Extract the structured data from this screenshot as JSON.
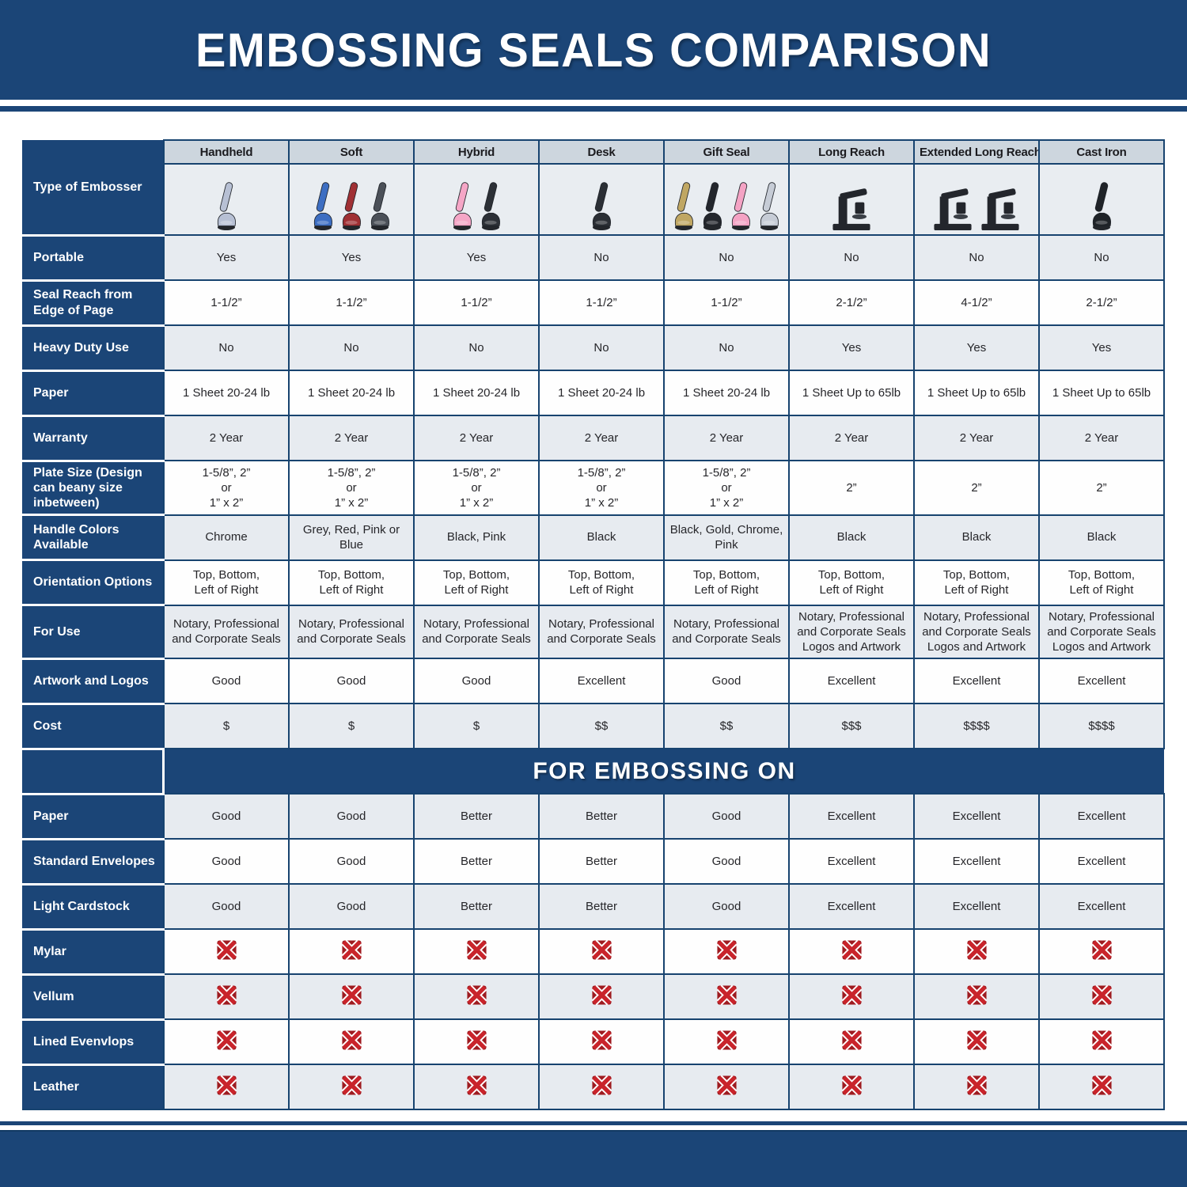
{
  "header": {
    "title": "EMBOSSING SEALS COMPARISON"
  },
  "colors": {
    "navy": "#1b4577",
    "border_navy": "#17436f",
    "column_header_bg": "#cdd6de",
    "image_row_bg": "#e9edf1",
    "light_row_bg": "#e7ebf0",
    "white_row_bg": "#fefefe",
    "x_mark_dark_red": "#9e1b20",
    "x_mark_bright_red": "#c9242b"
  },
  "table": {
    "corner_label": "Type of Embosser",
    "columns": [
      {
        "label": "Handheld",
        "glyph": "plier",
        "handle_colors": [
          "#b7c0d4"
        ]
      },
      {
        "label": "Soft",
        "glyph": "plier",
        "handle_colors": [
          "#3d6ec2",
          "#a03034",
          "#4b5058"
        ]
      },
      {
        "label": "Hybrid",
        "glyph": "plier",
        "handle_colors": [
          "#f5a6c6",
          "#2c3036"
        ]
      },
      {
        "label": "Desk",
        "glyph": "plier",
        "handle_colors": [
          "#2b2f35"
        ]
      },
      {
        "label": "Gift Seal",
        "glyph": "plier",
        "handle_colors": [
          "#c0a763",
          "#23262c",
          "#f4a3c4",
          "#c6ccd6"
        ]
      },
      {
        "label": "Long Reach",
        "glyph": "press",
        "handle_colors": [
          "#23262c"
        ]
      },
      {
        "label": "Extended Long Reach",
        "glyph": "press",
        "handle_colors": [
          "#23262c",
          "#23262c"
        ]
      },
      {
        "label": "Cast Iron",
        "glyph": "plier",
        "handle_colors": [
          "#1f2328"
        ]
      }
    ],
    "main_rows": [
      {
        "label": "Portable",
        "values": [
          "Yes",
          "Yes",
          "Yes",
          "No",
          "No",
          "No",
          "No",
          "No"
        ]
      },
      {
        "label": "Seal Reach from Edge of Page",
        "values": [
          "1-1/2”",
          "1-1/2”",
          "1-1/2”",
          "1-1/2”",
          "1-1/2”",
          "2-1/2”",
          "4-1/2”",
          "2-1/2”"
        ]
      },
      {
        "label": "Heavy Duty Use",
        "values": [
          "No",
          "No",
          "No",
          "No",
          "No",
          "Yes",
          "Yes",
          "Yes"
        ]
      },
      {
        "label": "Paper",
        "values": [
          "1 Sheet 20-24 lb",
          "1 Sheet 20-24 lb",
          "1 Sheet 20-24 lb",
          "1 Sheet 20-24 lb",
          "1 Sheet 20-24 lb",
          "1 Sheet Up to 65lb",
          "1 Sheet Up to 65lb",
          "1 Sheet Up to 65lb"
        ]
      },
      {
        "label": "Warranty",
        "values": [
          "2 Year",
          "2 Year",
          "2 Year",
          "2 Year",
          "2 Year",
          "2 Year",
          "2 Year",
          "2 Year"
        ]
      },
      {
        "label": "Plate Size (Design can beany size inbetween)",
        "values": [
          "1-5/8”, 2”\nor\n1” x 2”",
          "1-5/8”, 2”\nor\n1” x 2”",
          "1-5/8”, 2”\nor\n1” x 2”",
          "1-5/8”, 2”\nor\n1” x 2”",
          "1-5/8”, 2”\nor\n1” x 2”",
          "2”",
          "2”",
          "2”"
        ]
      },
      {
        "label": "Handle Colors Available",
        "values": [
          "Chrome",
          "Grey, Red, Pink or Blue",
          "Black, Pink",
          "Black",
          "Black, Gold, Chrome, Pink",
          "Black",
          "Black",
          "Black"
        ]
      },
      {
        "label": "Orientation Options",
        "values": [
          "Top, Bottom,\nLeft of Right",
          "Top, Bottom,\nLeft of Right",
          "Top, Bottom,\nLeft of Right",
          "Top, Bottom,\nLeft of Right",
          "Top, Bottom,\nLeft of Right",
          "Top, Bottom,\nLeft of Right",
          "Top, Bottom,\nLeft of Right",
          "Top, Bottom,\nLeft of Right"
        ]
      },
      {
        "label": "For Use",
        "values": [
          "Notary, Professional\nand Corporate Seals",
          "Notary, Professional\nand Corporate Seals",
          "Notary, Professional\nand Corporate Seals",
          "Notary, Professional\nand Corporate Seals",
          "Notary, Professional\nand Corporate Seals",
          "Notary, Professional\nand Corporate Seals\nLogos and Artwork",
          "Notary, Professional\nand Corporate Seals\nLogos and Artwork",
          "Notary, Professional\nand Corporate Seals\nLogos and Artwork"
        ]
      },
      {
        "label": "Artwork and Logos",
        "values": [
          "Good",
          "Good",
          "Good",
          "Excellent",
          "Good",
          "Excellent",
          "Excellent",
          "Excellent"
        ]
      },
      {
        "label": "Cost",
        "values": [
          "$",
          "$",
          "$",
          "$$",
          "$$",
          "$$$",
          "$$$$",
          "$$$$"
        ]
      }
    ],
    "section_header": "FOR EMBOSSING ON",
    "embossing_rows": [
      {
        "label": "Paper",
        "values": [
          "Good",
          "Good",
          "Better",
          "Better",
          "Good",
          "Excellent",
          "Excellent",
          "Excellent"
        ]
      },
      {
        "label": "Standard Envelopes",
        "values": [
          "Good",
          "Good",
          "Better",
          "Better",
          "Good",
          "Excellent",
          "Excellent",
          "Excellent"
        ]
      },
      {
        "label": "Light Cardstock",
        "values": [
          "Good",
          "Good",
          "Better",
          "Better",
          "Good",
          "Excellent",
          "Excellent",
          "Excellent"
        ]
      },
      {
        "label": "Mylar",
        "values": [
          "x-mark",
          "x-mark",
          "x-mark",
          "x-mark",
          "x-mark",
          "x-mark",
          "x-mark",
          "x-mark"
        ]
      },
      {
        "label": "Vellum",
        "values": [
          "x-mark",
          "x-mark",
          "x-mark",
          "x-mark",
          "x-mark",
          "x-mark",
          "x-mark",
          "x-mark"
        ]
      },
      {
        "label": "Lined Evenvlops",
        "values": [
          "x-mark",
          "x-mark",
          "x-mark",
          "x-mark",
          "x-mark",
          "x-mark",
          "x-mark",
          "x-mark"
        ]
      },
      {
        "label": "Leather",
        "values": [
          "x-mark",
          "x-mark",
          "x-mark",
          "x-mark",
          "x-mark",
          "x-mark",
          "x-mark",
          "x-mark"
        ]
      }
    ]
  }
}
